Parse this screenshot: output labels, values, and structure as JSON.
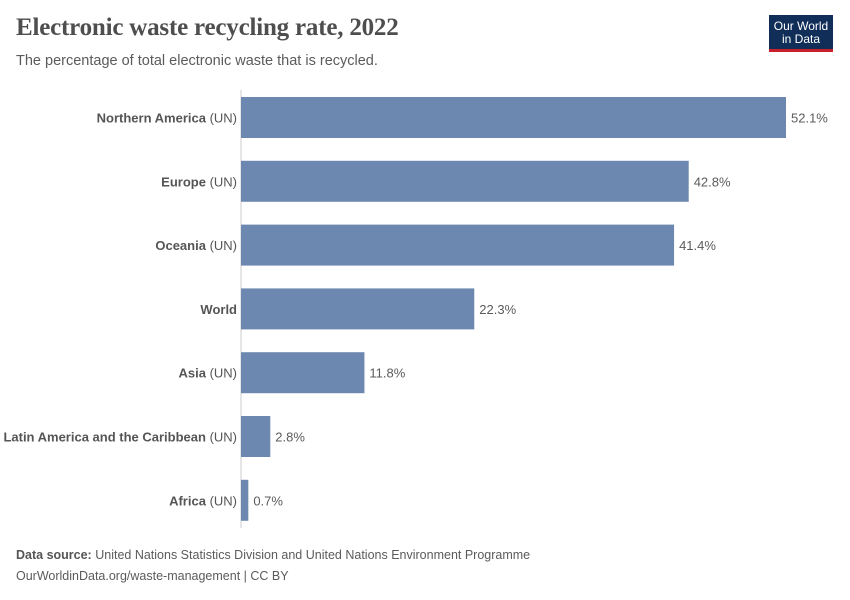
{
  "title": "Electronic waste recycling rate, 2022",
  "subtitle": "The percentage of total electronic waste that is recycled.",
  "logo": {
    "line1": "Our World",
    "line2": "in Data",
    "bg": "#102e58",
    "accent": "#c8202d"
  },
  "footer": {
    "source_label": "Data source:",
    "source": "United Nations Statistics Division and United Nations Environment Programme",
    "link": "OurWorldinData.org/waste-management | CC BY"
  },
  "chart_data": {
    "type": "bar",
    "orientation": "horizontal",
    "bar_color": "#6d88b0",
    "xlim": [
      0,
      52.1
    ],
    "grid": false,
    "unit": "%",
    "categories": [
      {
        "name": "Northern America",
        "suffix": "(UN)"
      },
      {
        "name": "Europe",
        "suffix": "(UN)"
      },
      {
        "name": "Oceania",
        "suffix": "(UN)"
      },
      {
        "name": "World",
        "suffix": ""
      },
      {
        "name": "Asia",
        "suffix": "(UN)"
      },
      {
        "name": "Latin America and the Caribbean",
        "suffix": "(UN)"
      },
      {
        "name": "Africa",
        "suffix": "(UN)"
      }
    ],
    "values": [
      52.1,
      42.8,
      41.4,
      22.3,
      11.8,
      2.8,
      0.7
    ],
    "value_labels": [
      "52.1%",
      "42.8%",
      "41.4%",
      "22.3%",
      "11.8%",
      "2.8%",
      "0.7%"
    ]
  }
}
